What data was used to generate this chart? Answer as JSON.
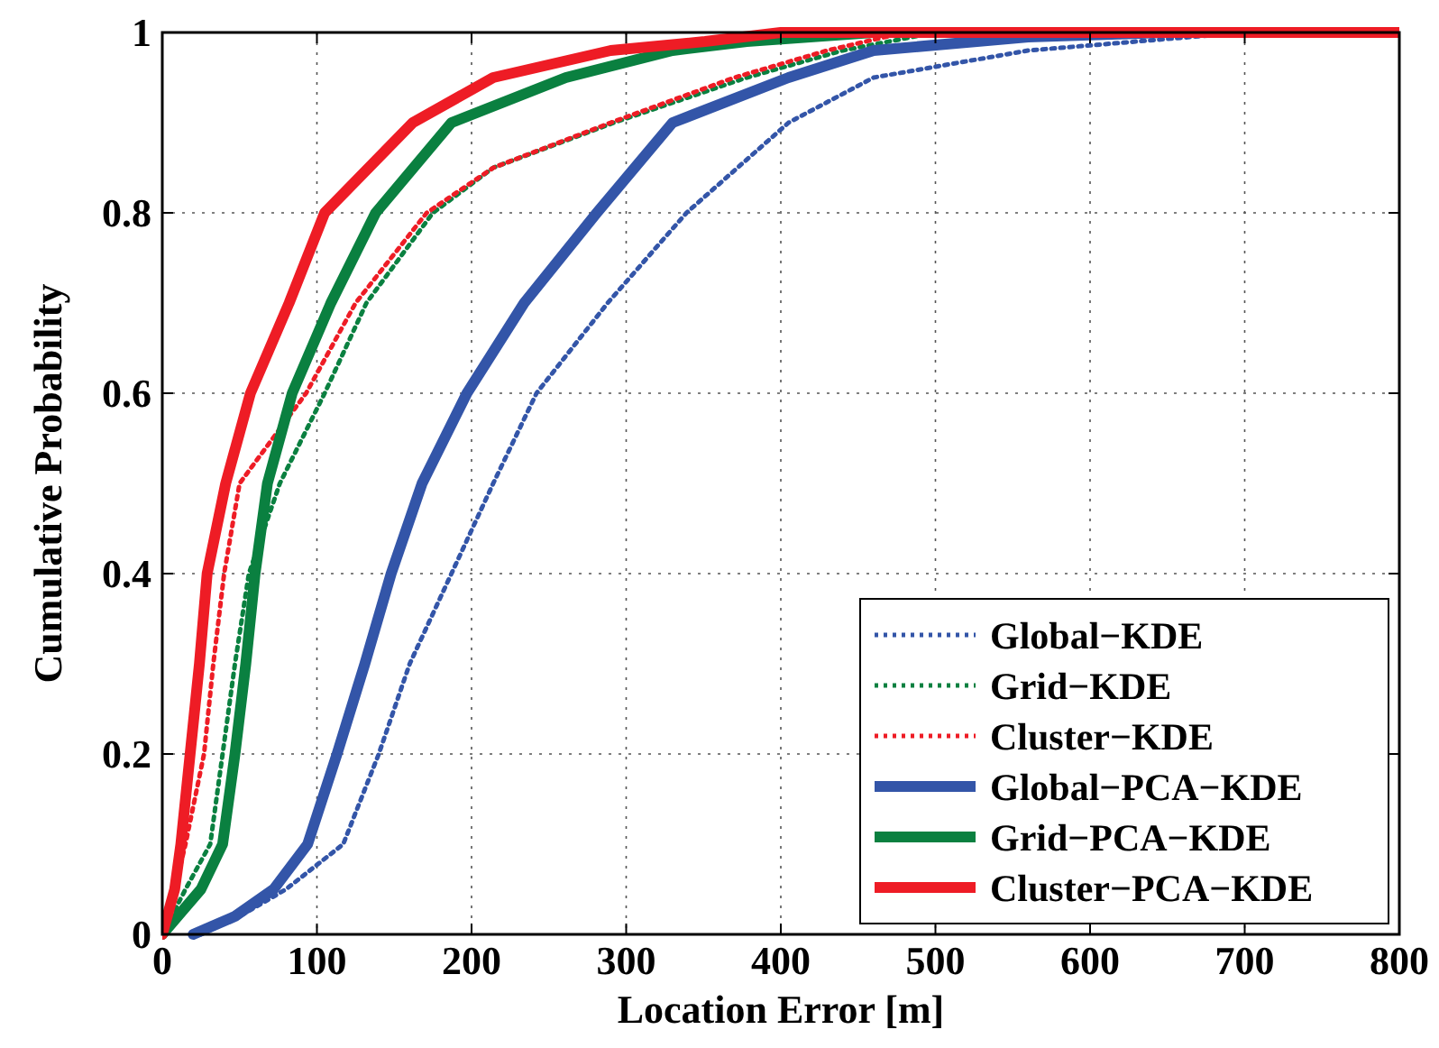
{
  "chart_data": {
    "type": "line",
    "xlabel": "Location Error [m]",
    "ylabel": "Cumulative Probability",
    "xlim": [
      0,
      800
    ],
    "ylim": [
      0,
      1
    ],
    "xticks": [
      0,
      100,
      200,
      300,
      400,
      500,
      600,
      700,
      800
    ],
    "yticks": [
      0,
      0.2,
      0.4,
      0.6,
      0.8,
      1
    ],
    "grid": true,
    "legend": "bottom right",
    "marker": "none",
    "series": [
      {
        "name": "Global−KDE",
        "color": "#3355a8",
        "line_style": "dotted",
        "x": [
          25,
          50,
          80,
          117,
          140,
          160,
          187,
          214,
          242,
          288,
          339,
          405,
          460,
          560,
          700,
          800
        ],
        "values": [
          0,
          0.02,
          0.05,
          0.1,
          0.2,
          0.3,
          0.4,
          0.5,
          0.6,
          0.7,
          0.8,
          0.9,
          0.95,
          0.98,
          1,
          1
        ]
      },
      {
        "name": "Grid−KDE",
        "color": "#0a8040",
        "line_style": "dotted",
        "x": [
          0,
          15,
          31,
          39,
          47,
          56,
          76,
          105,
          132,
          175,
          214,
          292,
          378,
          440,
          500,
          800
        ],
        "values": [
          0,
          0.05,
          0.1,
          0.2,
          0.3,
          0.4,
          0.5,
          0.6,
          0.7,
          0.8,
          0.85,
          0.9,
          0.95,
          0.98,
          1,
          1
        ]
      },
      {
        "name": "Cluster−KDE",
        "color": "#ee1c25",
        "line_style": "dotted",
        "x": [
          0,
          8,
          15,
          27,
          33,
          40,
          50,
          93,
          125,
          171,
          214,
          290,
          370,
          430,
          480,
          800
        ],
        "values": [
          0,
          0.05,
          0.1,
          0.2,
          0.3,
          0.4,
          0.5,
          0.6,
          0.7,
          0.8,
          0.85,
          0.9,
          0.95,
          0.98,
          1,
          1
        ]
      },
      {
        "name": "Global−PCA−KDE",
        "color": "#3355a8",
        "line_style": "solid",
        "x": [
          20,
          47,
          72,
          94,
          113,
          131,
          148,
          168,
          197,
          234,
          281,
          330,
          405,
          460,
          560,
          650,
          800
        ],
        "values": [
          0,
          0.02,
          0.05,
          0.1,
          0.2,
          0.3,
          0.4,
          0.5,
          0.6,
          0.7,
          0.8,
          0.9,
          0.95,
          0.98,
          0.995,
          1,
          1
        ]
      },
      {
        "name": "Grid−PCA−KDE",
        "color": "#0a8040",
        "line_style": "solid",
        "x": [
          0,
          25,
          39,
          47,
          54,
          60,
          68,
          84,
          109,
          138,
          187,
          261,
          330,
          378,
          460,
          800
        ],
        "values": [
          0,
          0.05,
          0.1,
          0.2,
          0.3,
          0.4,
          0.5,
          0.6,
          0.7,
          0.8,
          0.9,
          0.95,
          0.98,
          0.99,
          1,
          1
        ]
      },
      {
        "name": "Cluster−PCA−KDE",
        "color": "#ee1c25",
        "line_style": "solid",
        "x": [
          0,
          8,
          12,
          18,
          24,
          29,
          41,
          57,
          82,
          105,
          162,
          214,
          290,
          351,
          400,
          800
        ],
        "values": [
          0,
          0.05,
          0.1,
          0.2,
          0.3,
          0.4,
          0.5,
          0.6,
          0.7,
          0.8,
          0.9,
          0.95,
          0.98,
          0.99,
          1,
          1
        ]
      }
    ]
  }
}
